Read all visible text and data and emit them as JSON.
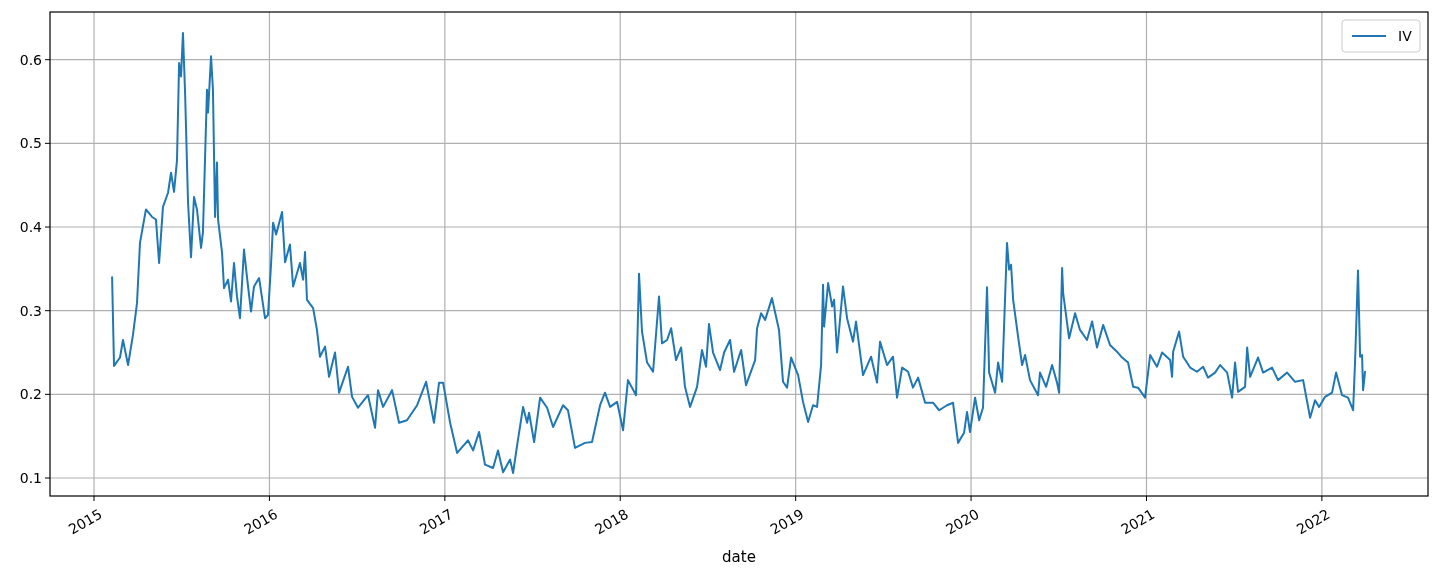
{
  "chart_data": {
    "type": "line",
    "xlabel": "date",
    "xlim": [
      2014.749,
      2022.605
    ],
    "xticks": [
      2015,
      2016,
      2017,
      2018,
      2019,
      2020,
      2021,
      2022
    ],
    "ylim": [
      0.0785,
      0.657
    ],
    "yticks": [
      0.1,
      0.2,
      0.3,
      0.4,
      0.5,
      0.6
    ],
    "grid": true,
    "legend": "top right",
    "series": [
      {
        "name": "IV",
        "color": "#1f77b4",
        "x": [
          2015.103,
          2015.114,
          2015.148,
          2015.165,
          2015.194,
          2015.222,
          2015.245,
          2015.262,
          2015.296,
          2015.331,
          2015.353,
          2015.371,
          2015.393,
          2015.422,
          2015.439,
          2015.456,
          2015.473,
          2015.485,
          2015.496,
          2015.507,
          2015.519,
          2015.536,
          2015.553,
          2015.57,
          2015.587,
          2015.61,
          2015.621,
          2015.644,
          2015.65,
          2015.667,
          2015.678,
          2015.69,
          2015.701,
          2015.707,
          2015.73,
          2015.741,
          2015.764,
          2015.781,
          2015.798,
          2015.815,
          2015.832,
          2015.855,
          2015.872,
          2015.895,
          2015.912,
          2015.941,
          2015.975,
          2015.992,
          2016.009,
          2016.021,
          2016.038,
          2016.072,
          2016.089,
          2016.117,
          2016.135,
          2016.174,
          2016.192,
          2016.203,
          2016.214,
          2016.249,
          2016.271,
          2016.288,
          2016.317,
          2016.34,
          2016.374,
          2016.397,
          2016.448,
          2016.471,
          2016.505,
          2016.562,
          2016.602,
          2016.619,
          2016.648,
          2016.699,
          2016.739,
          2016.784,
          2016.842,
          2016.893,
          2016.938,
          2016.967,
          2016.99,
          2017.03,
          2017.07,
          2017.132,
          2017.161,
          2017.195,
          2017.229,
          2017.275,
          2017.303,
          2017.332,
          2017.372,
          2017.389,
          2017.412,
          2017.446,
          2017.469,
          2017.48,
          2017.509,
          2017.543,
          2017.583,
          2017.617,
          2017.674,
          2017.702,
          2017.742,
          2017.799,
          2017.839,
          2017.885,
          2017.913,
          2017.942,
          2017.982,
          2018.016,
          2018.044,
          2018.09,
          2018.107,
          2018.124,
          2018.153,
          2018.187,
          2018.221,
          2018.238,
          2018.267,
          2018.29,
          2018.318,
          2018.347,
          2018.369,
          2018.398,
          2018.438,
          2018.466,
          2018.489,
          2018.506,
          2018.529,
          2018.569,
          2018.592,
          2018.626,
          2018.649,
          2018.689,
          2018.717,
          2018.769,
          2018.78,
          2018.803,
          2018.826,
          2018.865,
          2018.905,
          2018.928,
          2018.951,
          2018.974,
          2019.014,
          2019.042,
          2019.071,
          2019.099,
          2019.122,
          2019.145,
          2019.156,
          2019.162,
          2019.185,
          2019.208,
          2019.219,
          2019.236,
          2019.27,
          2019.293,
          2019.327,
          2019.344,
          2019.384,
          2019.43,
          2019.464,
          2019.481,
          2019.521,
          2019.555,
          2019.578,
          2019.607,
          2019.641,
          2019.669,
          2019.698,
          2019.738,
          2019.783,
          2019.818,
          2019.863,
          2019.897,
          2019.926,
          2019.96,
          2019.977,
          2019.994,
          2020.023,
          2020.046,
          2020.068,
          2020.091,
          2020.103,
          2020.137,
          2020.154,
          2020.177,
          2020.205,
          2020.217,
          2020.228,
          2020.24,
          2020.268,
          2020.291,
          2020.308,
          2020.336,
          2020.382,
          2020.393,
          2020.428,
          2020.462,
          2020.49,
          2020.502,
          2020.519,
          2020.525,
          2020.559,
          2020.593,
          2020.621,
          2020.661,
          2020.69,
          2020.718,
          2020.753,
          2020.792,
          2020.832,
          2020.861,
          2020.895,
          2020.924,
          2020.952,
          2020.992,
          2021.021,
          2021.06,
          2021.089,
          2021.135,
          2021.146,
          2021.152,
          2021.186,
          2021.209,
          2021.249,
          2021.288,
          2021.323,
          2021.351,
          2021.391,
          2021.42,
          2021.46,
          2021.488,
          2021.505,
          2021.522,
          2021.562,
          2021.574,
          2021.591,
          2021.636,
          2021.665,
          2021.716,
          2021.75,
          2021.802,
          2021.847,
          2021.893,
          2021.933,
          2021.961,
          2021.984,
          2022.018,
          2022.058,
          2022.081,
          2022.115,
          2022.149,
          2022.178,
          2022.189,
          2022.206,
          2022.218,
          2022.229,
          2022.235,
          2022.246
        ],
        "values": [
          0.34,
          0.234,
          0.244,
          0.265,
          0.235,
          0.271,
          0.309,
          0.381,
          0.421,
          0.412,
          0.409,
          0.357,
          0.424,
          0.441,
          0.465,
          0.442,
          0.48,
          0.596,
          0.58,
          0.632,
          0.561,
          0.429,
          0.364,
          0.436,
          0.421,
          0.375,
          0.394,
          0.564,
          0.537,
          0.604,
          0.564,
          0.412,
          0.477,
          0.409,
          0.369,
          0.327,
          0.337,
          0.311,
          0.357,
          0.317,
          0.291,
          0.373,
          0.34,
          0.299,
          0.329,
          0.339,
          0.291,
          0.295,
          0.355,
          0.405,
          0.391,
          0.418,
          0.358,
          0.379,
          0.329,
          0.357,
          0.337,
          0.37,
          0.313,
          0.303,
          0.277,
          0.245,
          0.257,
          0.221,
          0.25,
          0.202,
          0.233,
          0.197,
          0.184,
          0.199,
          0.16,
          0.205,
          0.185,
          0.205,
          0.166,
          0.169,
          0.187,
          0.215,
          0.166,
          0.214,
          0.214,
          0.166,
          0.13,
          0.145,
          0.133,
          0.155,
          0.116,
          0.112,
          0.133,
          0.107,
          0.122,
          0.106,
          0.139,
          0.185,
          0.166,
          0.178,
          0.143,
          0.196,
          0.184,
          0.161,
          0.187,
          0.181,
          0.136,
          0.142,
          0.143,
          0.187,
          0.202,
          0.185,
          0.191,
          0.157,
          0.217,
          0.199,
          0.344,
          0.275,
          0.238,
          0.227,
          0.317,
          0.261,
          0.265,
          0.279,
          0.241,
          0.256,
          0.209,
          0.185,
          0.209,
          0.253,
          0.233,
          0.284,
          0.25,
          0.229,
          0.25,
          0.265,
          0.227,
          0.253,
          0.211,
          0.241,
          0.279,
          0.297,
          0.289,
          0.315,
          0.277,
          0.215,
          0.208,
          0.244,
          0.223,
          0.191,
          0.167,
          0.187,
          0.185,
          0.235,
          0.331,
          0.281,
          0.333,
          0.305,
          0.313,
          0.25,
          0.329,
          0.291,
          0.263,
          0.287,
          0.223,
          0.245,
          0.214,
          0.263,
          0.235,
          0.245,
          0.196,
          0.232,
          0.227,
          0.208,
          0.22,
          0.19,
          0.19,
          0.181,
          0.187,
          0.19,
          0.142,
          0.154,
          0.179,
          0.155,
          0.196,
          0.169,
          0.184,
          0.328,
          0.226,
          0.202,
          0.238,
          0.215,
          0.381,
          0.349,
          0.355,
          0.313,
          0.269,
          0.235,
          0.247,
          0.217,
          0.199,
          0.226,
          0.209,
          0.235,
          0.214,
          0.202,
          0.351,
          0.321,
          0.267,
          0.297,
          0.277,
          0.265,
          0.287,
          0.256,
          0.283,
          0.259,
          0.251,
          0.244,
          0.238,
          0.209,
          0.208,
          0.196,
          0.247,
          0.233,
          0.25,
          0.241,
          0.221,
          0.251,
          0.275,
          0.245,
          0.232,
          0.227,
          0.233,
          0.22,
          0.226,
          0.235,
          0.226,
          0.196,
          0.238,
          0.203,
          0.209,
          0.256,
          0.221,
          0.244,
          0.226,
          0.232,
          0.217,
          0.226,
          0.215,
          0.217,
          0.172,
          0.193,
          0.185,
          0.197,
          0.202,
          0.226,
          0.199,
          0.196,
          0.181,
          0.238,
          0.348,
          0.245,
          0.247,
          0.205,
          0.227
        ]
      }
    ]
  }
}
